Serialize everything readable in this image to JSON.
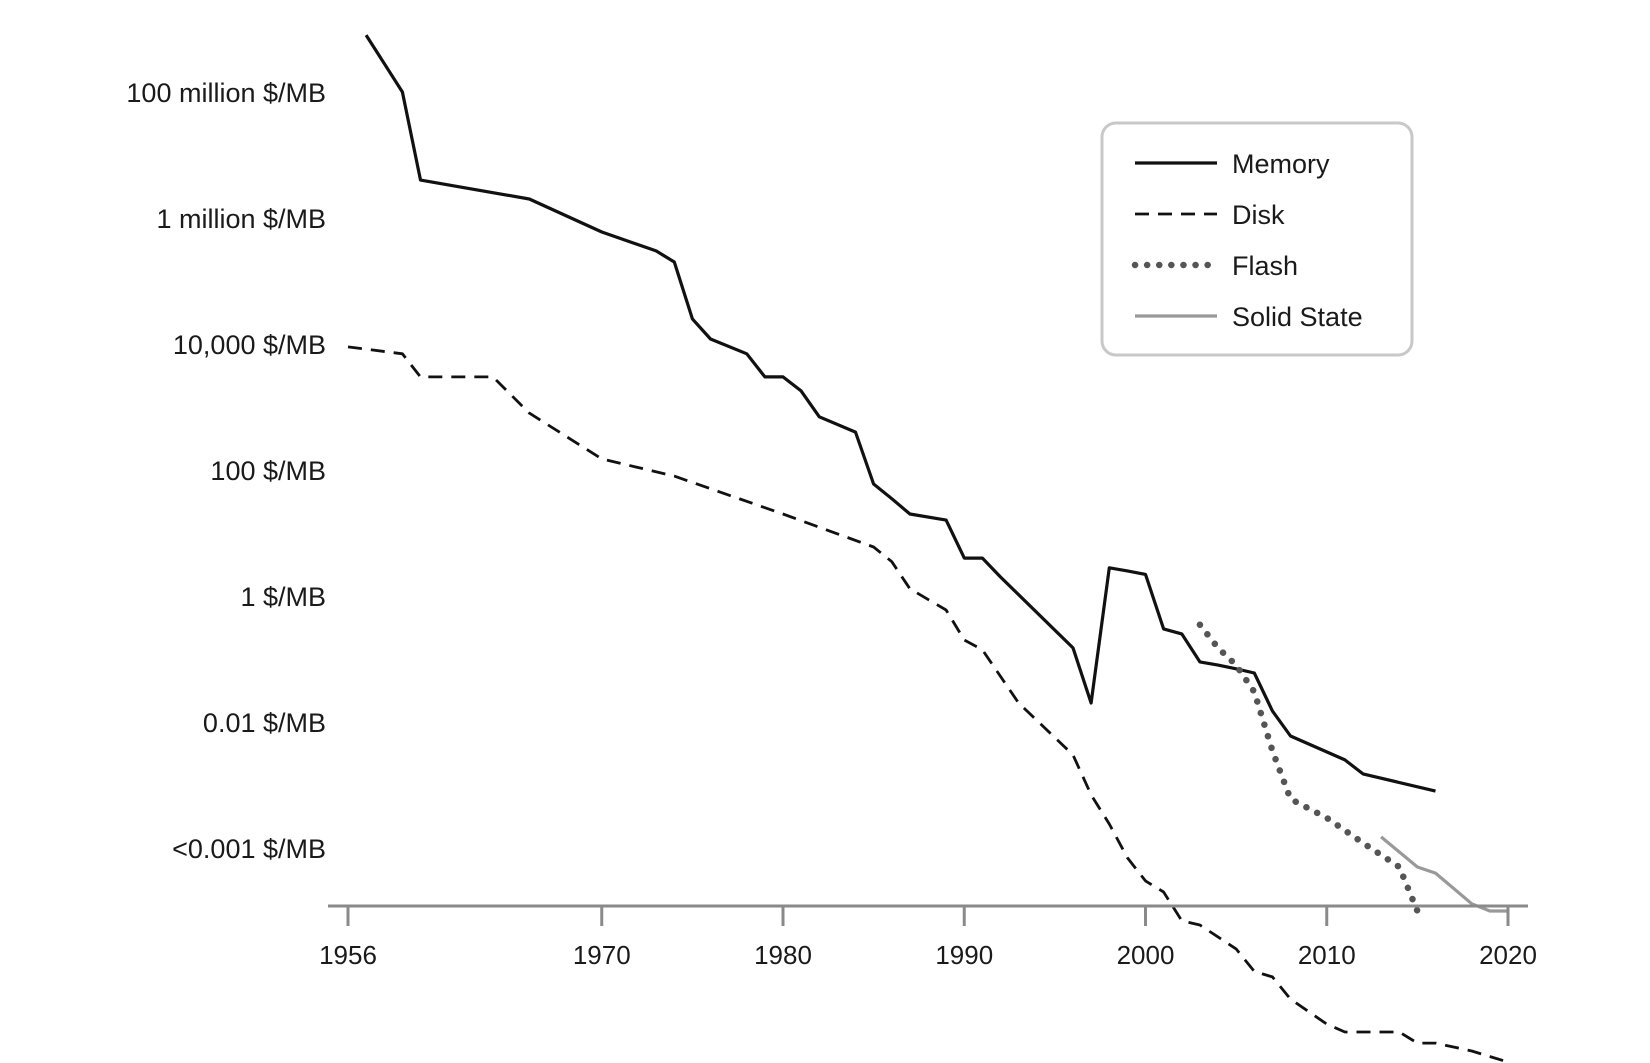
{
  "chart_data": {
    "type": "line",
    "title": "",
    "xlabel": "",
    "ylabel": "",
    "y_scale": "log",
    "x_range": [
      1956,
      2020
    ],
    "x_ticks": [
      {
        "value": 1956,
        "label": "1956"
      },
      {
        "value": 1970,
        "label": "1970"
      },
      {
        "value": 1980,
        "label": "1980"
      },
      {
        "value": 1990,
        "label": "1990"
      },
      {
        "value": 2000,
        "label": "2000"
      },
      {
        "value": 2010,
        "label": "2010"
      },
      {
        "value": 2020,
        "label": "2020"
      }
    ],
    "y_ticks": [
      {
        "value": 100000000,
        "label": "100 million $/MB"
      },
      {
        "value": 1000000,
        "label": "1 million $/MB"
      },
      {
        "value": 10000,
        "label": "10,000 $/MB"
      },
      {
        "value": 100,
        "label": "100 $/MB"
      },
      {
        "value": 1,
        "label": "1 $/MB"
      },
      {
        "value": 0.01,
        "label": "0.01 $/MB"
      },
      {
        "value": 0.0001,
        "label": "<0.001 $/MB"
      }
    ],
    "grid": false,
    "legend_position": "top-right",
    "series": [
      {
        "name": "Memory",
        "color": "#111111",
        "style": "solid",
        "points": [
          [
            1957,
            800000000
          ],
          [
            1959,
            100000000
          ],
          [
            1960,
            4000000
          ],
          [
            1966,
            2000000
          ],
          [
            1970,
            600000
          ],
          [
            1973,
            300000
          ],
          [
            1974,
            200000
          ],
          [
            1975,
            25000
          ],
          [
            1976,
            12000
          ],
          [
            1978,
            7000
          ],
          [
            1979,
            3000
          ],
          [
            1980,
            3000
          ],
          [
            1981,
            1800
          ],
          [
            1982,
            700
          ],
          [
            1984,
            400
          ],
          [
            1985,
            60
          ],
          [
            1986,
            35
          ],
          [
            1987,
            20
          ],
          [
            1989,
            16
          ],
          [
            1990,
            4
          ],
          [
            1991,
            4
          ],
          [
            1992,
            2
          ],
          [
            1996,
            0.15
          ],
          [
            1997,
            0.02
          ],
          [
            1998,
            2.8
          ],
          [
            1999,
            2.5
          ],
          [
            2000,
            2.2
          ],
          [
            2001,
            0.3
          ],
          [
            2002,
            0.25
          ],
          [
            2003,
            0.09
          ],
          [
            2004,
            0.08
          ],
          [
            2005,
            0.07
          ],
          [
            2006,
            0.06
          ],
          [
            2007,
            0.015
          ],
          [
            2008,
            0.006
          ],
          [
            2011,
            0.0025
          ],
          [
            2012,
            0.0015
          ],
          [
            2016,
            0.0008
          ]
        ]
      },
      {
        "name": "Disk",
        "color": "#111111",
        "style": "dashed",
        "points": [
          [
            1956,
            9000
          ],
          [
            1959,
            7000
          ],
          [
            1960,
            3000
          ],
          [
            1964,
            3000
          ],
          [
            1966,
            800
          ],
          [
            1970,
            150
          ],
          [
            1974,
            80
          ],
          [
            1980,
            20
          ],
          [
            1985,
            6
          ],
          [
            1986,
            3.5
          ],
          [
            1987,
            1.3
          ],
          [
            1989,
            0.6
          ],
          [
            1990,
            0.2
          ],
          [
            1991,
            0.14
          ],
          [
            1993,
            0.02
          ],
          [
            1996,
            0.003
          ],
          [
            1997,
            0.0007
          ],
          [
            1998,
            0.00024
          ],
          [
            1999,
            7e-05
          ],
          [
            2000,
            3e-05
          ],
          [
            2001,
            2e-05
          ],
          [
            2002,
            7e-06
          ],
          [
            2003,
            6e-06
          ],
          [
            2005,
            2.5e-06
          ],
          [
            2006,
            1.1e-06
          ],
          [
            2007,
            9e-07
          ],
          [
            2008,
            4e-07
          ],
          [
            2010,
            1.6e-07
          ],
          [
            2011,
            1.2e-07
          ],
          [
            2014,
            1.2e-07
          ],
          [
            2015,
            8e-08
          ],
          [
            2016,
            8e-08
          ],
          [
            2018,
            6e-08
          ],
          [
            2020,
            4e-08
          ]
        ]
      },
      {
        "name": "Flash",
        "color": "#555555",
        "style": "dotted",
        "points": [
          [
            2003,
            0.35
          ],
          [
            2004,
            0.15
          ],
          [
            2005,
            0.08
          ],
          [
            2006,
            0.03
          ],
          [
            2007,
            0.0035
          ],
          [
            2008,
            0.0006
          ],
          [
            2010,
            0.0003
          ],
          [
            2012,
            0.00012
          ],
          [
            2014,
            5e-05
          ],
          [
            2015,
            1e-05
          ]
        ]
      },
      {
        "name": "Solid State",
        "color": "#999999",
        "style": "solid",
        "points": [
          [
            2013,
            0.00015
          ],
          [
            2015,
            5e-05
          ],
          [
            2016,
            4e-05
          ],
          [
            2018,
            1.3e-05
          ],
          [
            2019,
            1e-05
          ],
          [
            2020,
            1e-05
          ]
        ]
      }
    ]
  }
}
